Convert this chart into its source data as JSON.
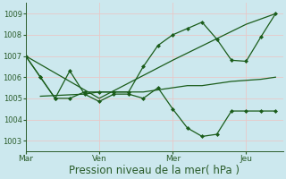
{
  "background_color": "#cce8ee",
  "grid_color_major": "#e8c8c8",
  "line_color": "#1a5c1a",
  "xlabel": "Pression niveau de la mer( hPa )",
  "xlabel_fontsize": 8.5,
  "ylim": [
    1002.5,
    1009.5
  ],
  "yticks": [
    1003,
    1004,
    1005,
    1006,
    1007,
    1008,
    1009
  ],
  "xtick_labels": [
    "Mar",
    "Ven",
    "Mer",
    "Jeu"
  ],
  "xtick_positions": [
    0,
    10,
    20,
    30
  ],
  "xlim": [
    0,
    35
  ],
  "series": [
    {
      "x": [
        0,
        10,
        20,
        30,
        34
      ],
      "y": [
        1007.0,
        1005.0,
        1006.8,
        1008.5,
        1009.0
      ],
      "marker": null,
      "linewidth": 0.9
    },
    {
      "x": [
        2,
        8,
        10,
        12,
        14,
        16,
        18,
        20,
        22,
        24,
        26,
        28,
        30,
        32,
        34
      ],
      "y": [
        1005.1,
        1005.2,
        1005.3,
        1005.3,
        1005.3,
        1005.3,
        1005.4,
        1005.5,
        1005.6,
        1005.6,
        1005.7,
        1005.8,
        1005.85,
        1005.9,
        1006.0
      ],
      "marker": null,
      "linewidth": 0.9
    },
    {
      "x": [
        0,
        2,
        4,
        6,
        8,
        10,
        12,
        14,
        16,
        18,
        20,
        22,
        24,
        26,
        28,
        30,
        32,
        34
      ],
      "y": [
        1007.0,
        1006.0,
        1005.0,
        1006.3,
        1005.2,
        1004.85,
        1005.2,
        1005.2,
        1005.0,
        1005.5,
        1004.5,
        1003.6,
        1003.2,
        1003.3,
        1004.4,
        1004.4,
        1004.4,
        1004.4
      ],
      "marker": "D",
      "markersize": 2.0,
      "linewidth": 0.9
    },
    {
      "x": [
        0,
        2,
        4,
        6,
        8,
        10,
        12,
        14,
        16,
        18,
        20,
        22,
        24,
        26,
        28,
        30,
        32,
        34
      ],
      "y": [
        1007.0,
        1006.0,
        1005.0,
        1005.0,
        1005.3,
        1005.3,
        1005.3,
        1005.3,
        1006.5,
        1007.5,
        1008.0,
        1008.3,
        1008.6,
        1007.8,
        1006.8,
        1006.75,
        1007.9,
        1009.0
      ],
      "marker": "D",
      "markersize": 2.0,
      "linewidth": 0.9
    }
  ]
}
